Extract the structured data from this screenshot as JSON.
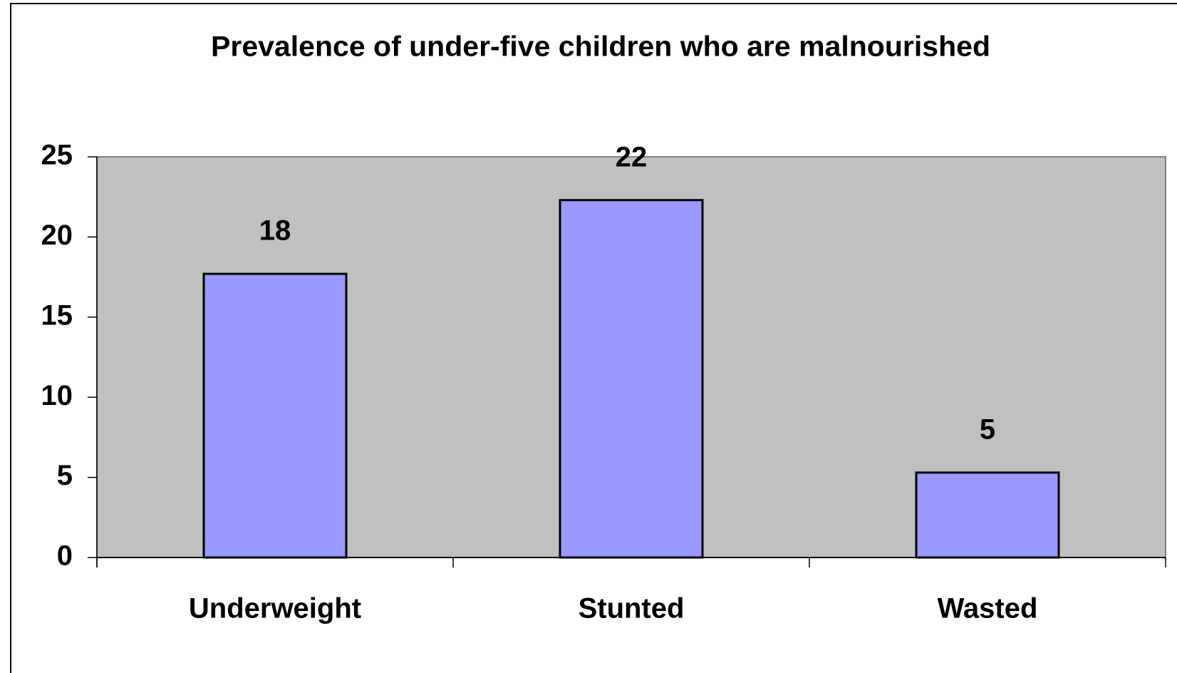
{
  "chart_data": {
    "type": "bar",
    "title": "Prevalence of under-five children who are malnourished",
    "categories": [
      "Underweight",
      "Stunted",
      "Wasted"
    ],
    "values": [
      17.7,
      22.3,
      5.3
    ],
    "value_labels": [
      "18",
      "22",
      "5"
    ],
    "color": "#9999ff",
    "ylim": [
      0,
      25
    ],
    "yticks": [
      0,
      5,
      10,
      15,
      20,
      25
    ],
    "plot_background": "#c0c0c0"
  }
}
